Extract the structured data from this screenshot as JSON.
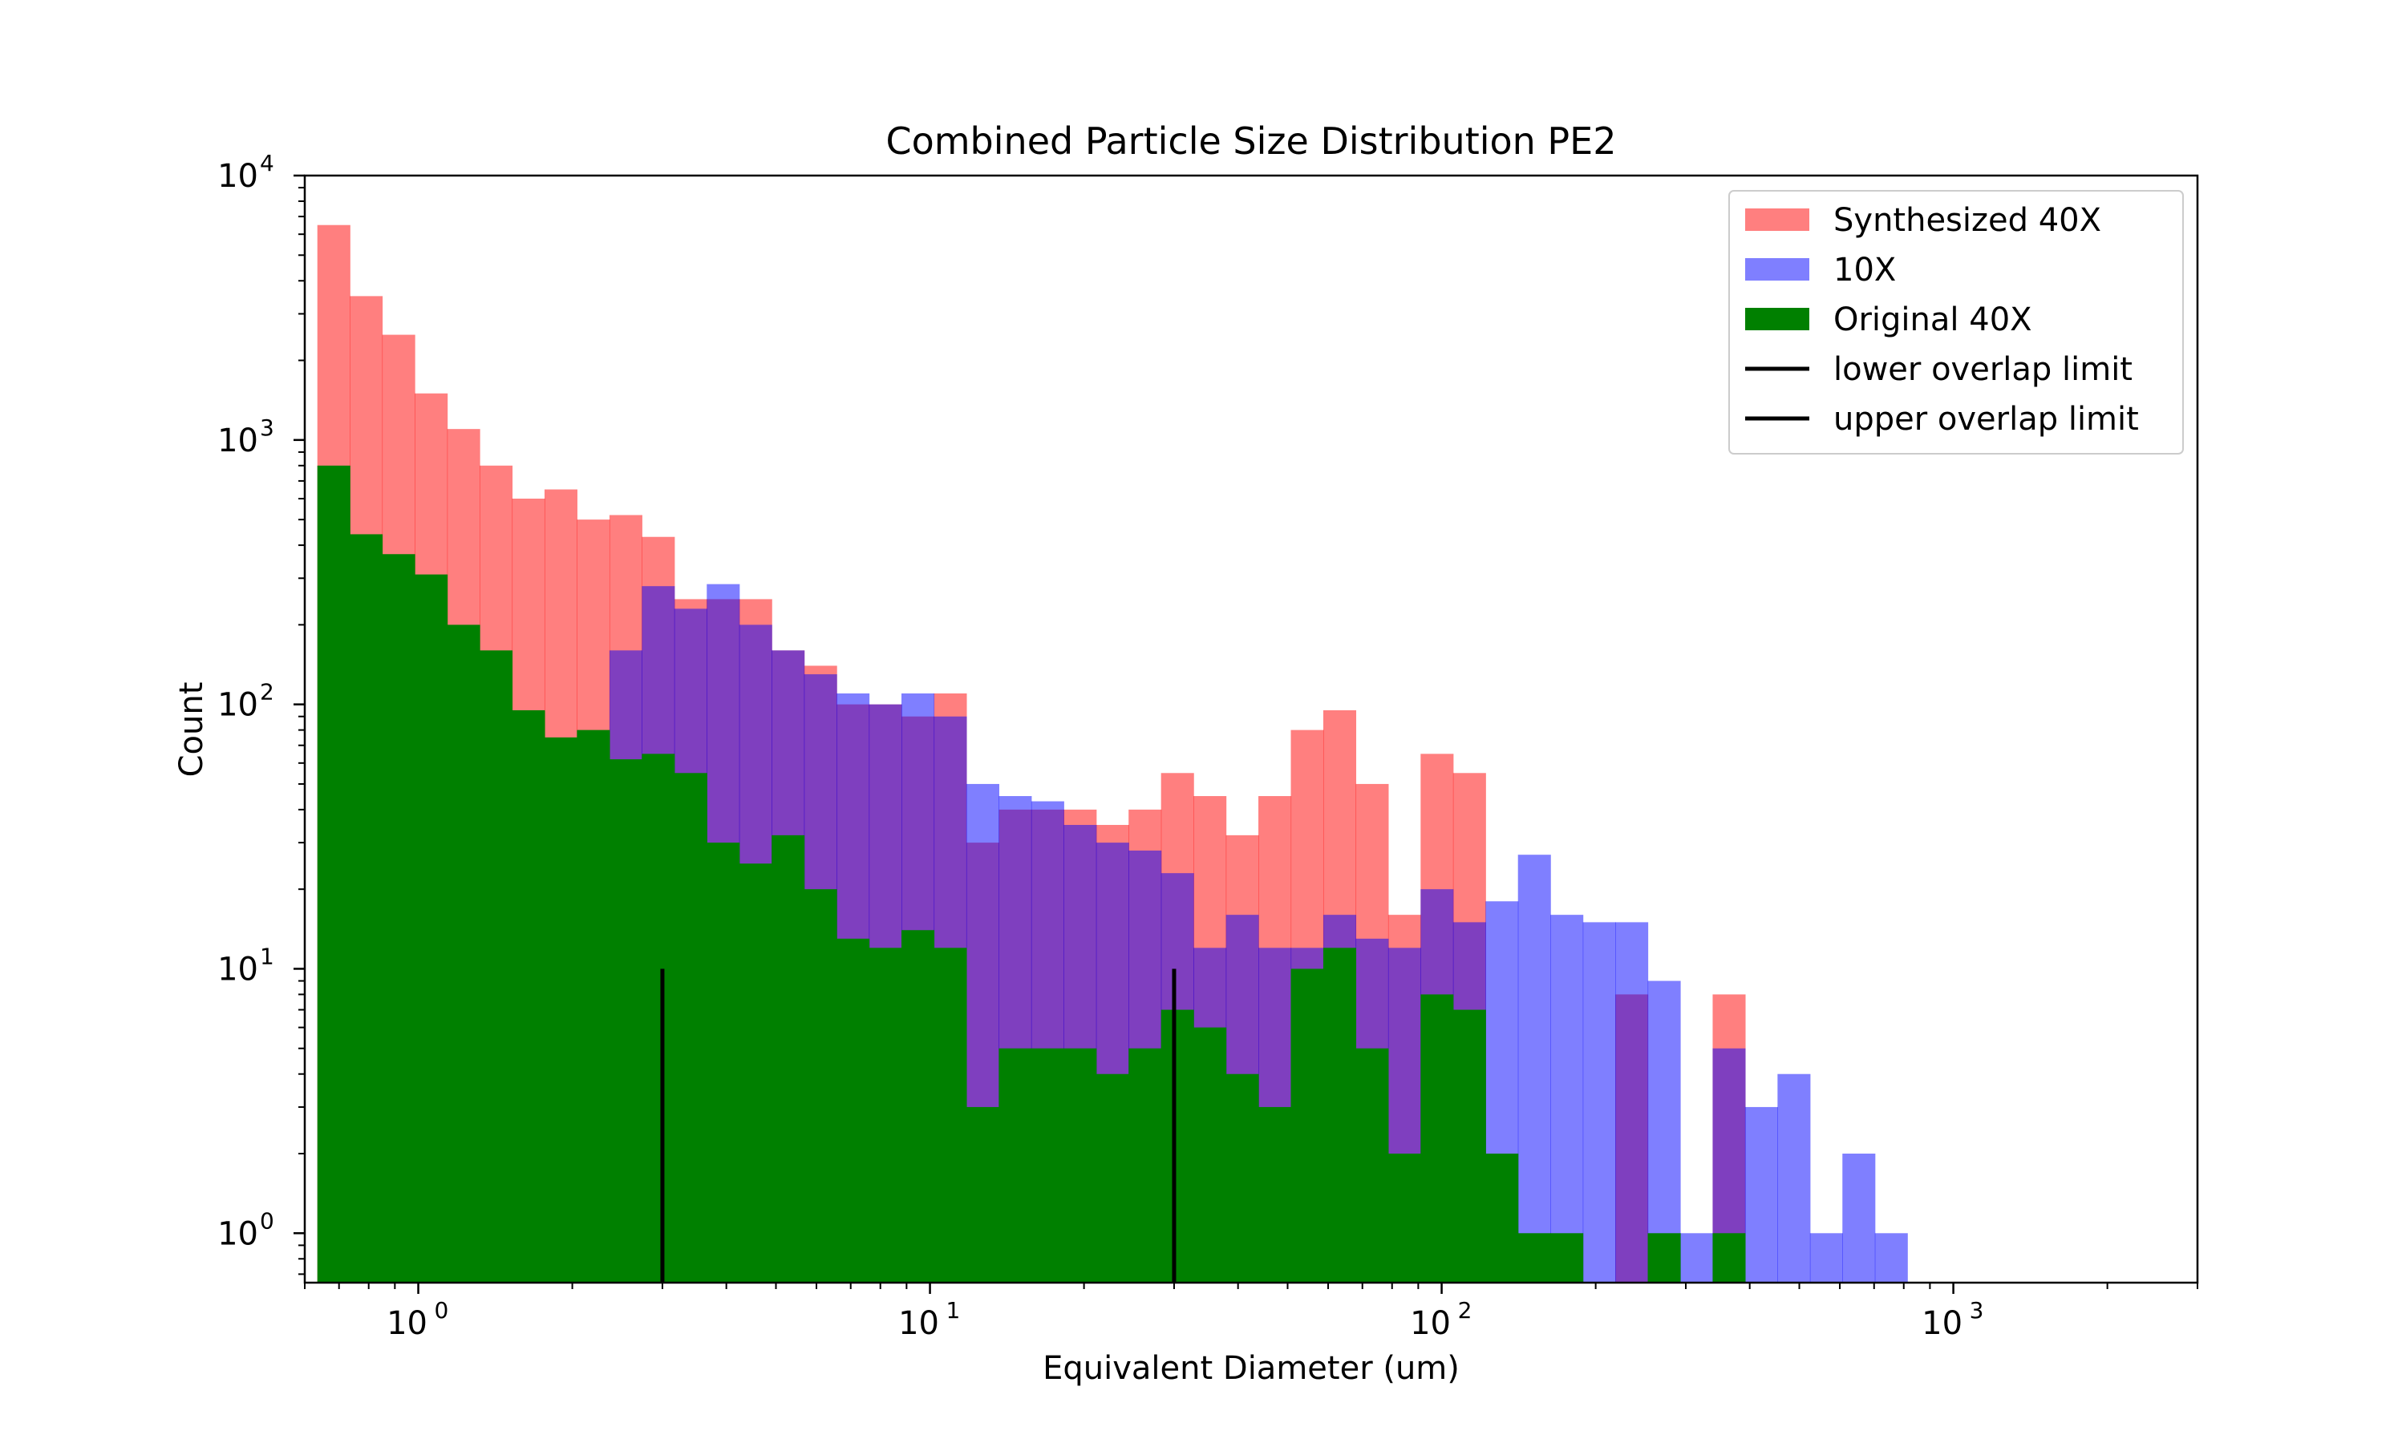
{
  "chart_data": {
    "type": "bar",
    "title": "Combined Particle Size Distribution PE2",
    "xlabel": "Equivalent Diameter (um)",
    "ylabel": "Count",
    "xscale": "log",
    "yscale": "log",
    "xlim": [
      0.6,
      3000
    ],
    "ylim": [
      0.65,
      10000
    ],
    "xticks": [
      {
        "value": 1,
        "base": "10",
        "exp": "0"
      },
      {
        "value": 10,
        "base": "10",
        "exp": "1"
      },
      {
        "value": 100,
        "base": "10",
        "exp": "2"
      },
      {
        "value": 1000,
        "base": "10",
        "exp": "3"
      }
    ],
    "yticks": [
      {
        "value": 1,
        "base": "10",
        "exp": "0"
      },
      {
        "value": 10,
        "base": "10",
        "exp": "1"
      },
      {
        "value": 100,
        "base": "10",
        "exp": "2"
      },
      {
        "value": 1000,
        "base": "10",
        "exp": "3"
      },
      {
        "value": 10000,
        "base": "10",
        "exp": "4"
      }
    ],
    "bin_edges": [
      0.635,
      0.735,
      0.85,
      0.984,
      1.139,
      1.318,
      1.525,
      1.765,
      2.042,
      2.364,
      2.735,
      3.165,
      3.663,
      4.239,
      4.905,
      5.676,
      6.569,
      7.601,
      8.796,
      10.179,
      11.779,
      13.631,
      15.774,
      18.254,
      21.124,
      24.445,
      28.288,
      32.735,
      37.881,
      43.836,
      50.728,
      58.702,
      67.93,
      78.609,
      90.967,
      105.268,
      121.817,
      140.967,
      163.129,
      188.773,
      218.449,
      252.792,
      292.532,
      338.52,
      391.737,
      453.32,
      524.583,
      607.05,
      702.48,
      812.912
    ],
    "series": [
      {
        "name": "Synthesized 40X",
        "color": "#ff0000",
        "opacity": 0.5,
        "values": [
          6500,
          3500,
          2500,
          1500,
          1100,
          800,
          600,
          650,
          500,
          520,
          430,
          250,
          250,
          250,
          160,
          140,
          100,
          100,
          90,
          110,
          30,
          40,
          40,
          40,
          35,
          40,
          55,
          45,
          32,
          45,
          80,
          95,
          50,
          16,
          65,
          55,
          0,
          0,
          0,
          0,
          8,
          0,
          0,
          8,
          0,
          0,
          0,
          0,
          0
        ]
      },
      {
        "name": "10X",
        "color": "#0000ff",
        "opacity": 0.5,
        "values": [
          0,
          0,
          0,
          0,
          0,
          0,
          0,
          0,
          0,
          160,
          280,
          230,
          285,
          200,
          160,
          130,
          110,
          100,
          110,
          90,
          50,
          45,
          43,
          35,
          30,
          28,
          23,
          12,
          16,
          12,
          12,
          16,
          13,
          12,
          20,
          15,
          18,
          27,
          16,
          15,
          15,
          9,
          1,
          5,
          3,
          4,
          1,
          2,
          1
        ]
      },
      {
        "name": "Original 40X",
        "color": "#008000",
        "opacity": 1,
        "values": [
          800,
          440,
          370,
          310,
          200,
          160,
          95,
          75,
          80,
          62,
          65,
          55,
          30,
          25,
          32,
          20,
          13,
          12,
          14,
          12,
          3,
          5,
          5,
          5,
          4,
          5,
          7,
          6,
          4,
          3,
          10,
          12,
          5,
          2,
          8,
          7,
          2,
          1,
          1,
          0,
          0,
          1,
          0,
          1,
          0,
          0,
          0,
          0,
          0
        ]
      }
    ],
    "vlines": [
      {
        "name": "lower overlap limit",
        "x": 3.0,
        "ymax": 10,
        "color": "#000000"
      },
      {
        "name": "upper overlap limit",
        "x": 30.0,
        "ymax": 10,
        "color": "#000000"
      }
    ],
    "legend": {
      "placement": "top-right",
      "entries": [
        {
          "label": "Synthesized 40X",
          "kind": "patch",
          "color": "#ff0000",
          "opacity": 0.5
        },
        {
          "label": "10X",
          "kind": "patch",
          "color": "#0000ff",
          "opacity": 0.5
        },
        {
          "label": "Original 40X",
          "kind": "patch",
          "color": "#008000",
          "opacity": 1
        },
        {
          "label": "lower overlap limit",
          "kind": "line",
          "color": "#000000",
          "opacity": 1
        },
        {
          "label": "upper overlap limit",
          "kind": "line",
          "color": "#000000",
          "opacity": 1
        }
      ]
    },
    "grid": false
  }
}
